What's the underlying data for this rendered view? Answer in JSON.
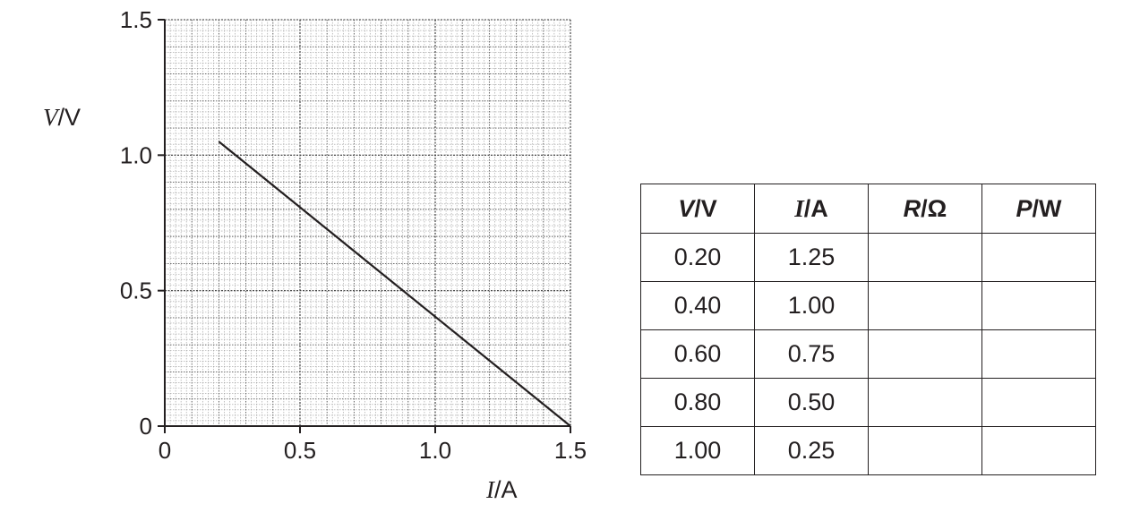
{
  "chart_data": {
    "type": "line",
    "xlabel": {
      "var": "I",
      "unit": "/A"
    },
    "ylabel": {
      "var": "V",
      "unit": "/V"
    },
    "xlim": [
      0,
      1.5
    ],
    "ylim": [
      0,
      1.5
    ],
    "x_ticks": [
      "0",
      "0.5",
      "1.0",
      "1.5"
    ],
    "y_ticks": [
      "0",
      "0.5",
      "1.0",
      "1.5"
    ],
    "grid": "on",
    "series": [
      {
        "x": [
          0.2,
          1.5
        ],
        "y": [
          1.05,
          0.0
        ]
      }
    ]
  },
  "table": {
    "headers": [
      "V/V",
      "I/A",
      "R/Ω",
      "P/W"
    ],
    "rows": [
      [
        "0.20",
        "1.25",
        "",
        ""
      ],
      [
        "0.40",
        "1.00",
        "",
        ""
      ],
      [
        "0.60",
        "0.75",
        "",
        ""
      ],
      [
        "0.80",
        "0.50",
        "",
        ""
      ],
      [
        "1.00",
        "0.25",
        "",
        ""
      ]
    ]
  },
  "colors": {
    "ink": "#231f20",
    "grid_fine": "#9a9a9a",
    "grid_major": "#555555"
  }
}
